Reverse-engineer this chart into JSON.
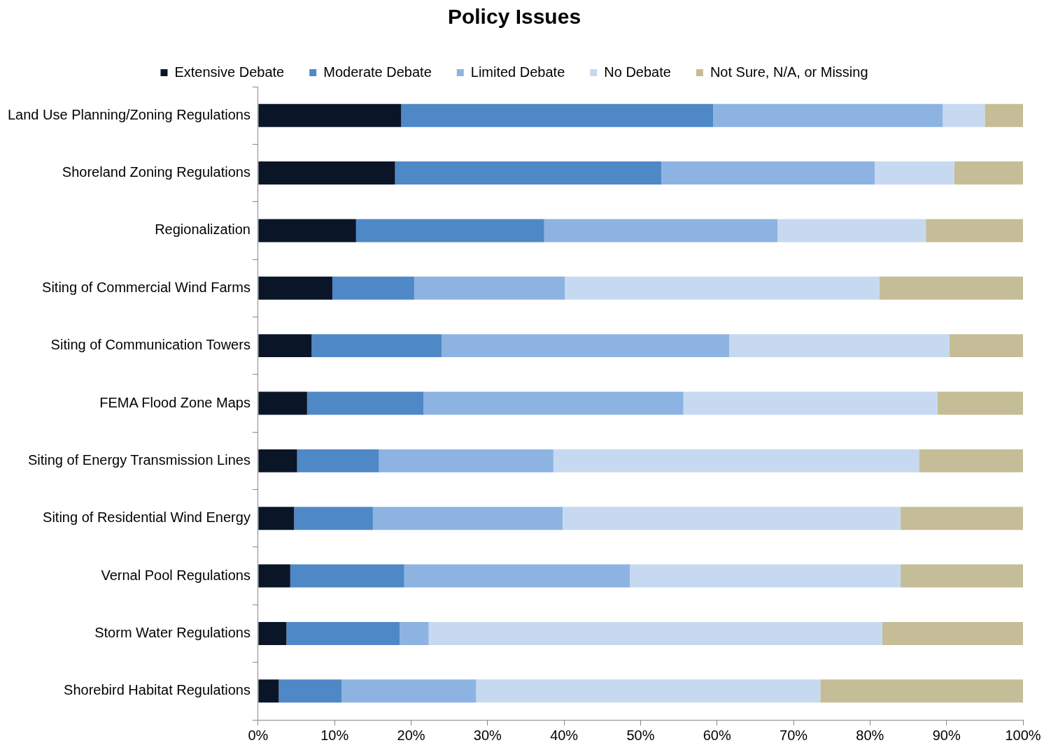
{
  "chart_data": {
    "type": "bar",
    "title": "Policy Issues",
    "orientation": "horizontal",
    "stacked": true,
    "grid": false,
    "legend": "top",
    "categories": [
      "Land Use Planning/Zoning Regulations",
      "Shoreland Zoning Regulations",
      "Regionalization",
      "Siting of Commercial Wind Farms",
      "Siting of Communication Towers",
      "FEMA Flood Zone Maps",
      "Siting of Energy Transmission Lines",
      "Siting of Residential Wind Energy",
      "Vernal Pool Regulations",
      "Storm Water Regulations",
      "Shorebird Habitat Regulations"
    ],
    "series": [
      {
        "name": "Extensive Debate",
        "color": "#0a1628",
        "values": [
          18.7,
          17.9,
          12.8,
          9.7,
          7.0,
          6.4,
          5.1,
          4.7,
          4.2,
          3.7,
          2.7
        ]
      },
      {
        "name": "Moderate Debate",
        "color": "#4f88c6",
        "values": [
          40.8,
          34.8,
          24.6,
          10.7,
          17.0,
          15.2,
          10.7,
          10.3,
          14.9,
          14.8,
          8.2
        ]
      },
      {
        "name": "Limited Debate",
        "color": "#8db3e2",
        "values": [
          30.0,
          27.9,
          30.5,
          19.7,
          37.6,
          34.0,
          22.8,
          24.8,
          29.5,
          3.8,
          17.6
        ]
      },
      {
        "name": "No Debate",
        "color": "#c6d9f0",
        "values": [
          5.5,
          10.4,
          19.4,
          41.1,
          28.8,
          33.2,
          47.8,
          44.2,
          35.4,
          59.3,
          45.0
        ]
      },
      {
        "name": "Not Sure, N/A, or Missing",
        "color": "#c4bd97",
        "values": [
          5.0,
          9.0,
          12.7,
          18.8,
          9.6,
          11.2,
          13.6,
          16.0,
          16.0,
          18.4,
          26.5
        ]
      }
    ],
    "xlim": [
      0,
      100
    ],
    "xticks": [
      {
        "value": 0,
        "label": "0%"
      },
      {
        "value": 10,
        "label": "10%"
      },
      {
        "value": 20,
        "label": "20%"
      },
      {
        "value": 30,
        "label": "30%"
      },
      {
        "value": 40,
        "label": "40%"
      },
      {
        "value": 50,
        "label": "50%"
      },
      {
        "value": 60,
        "label": "60%"
      },
      {
        "value": 70,
        "label": "70%"
      },
      {
        "value": 80,
        "label": "80%"
      },
      {
        "value": 90,
        "label": "90%"
      },
      {
        "value": 100,
        "label": "100%"
      }
    ]
  }
}
